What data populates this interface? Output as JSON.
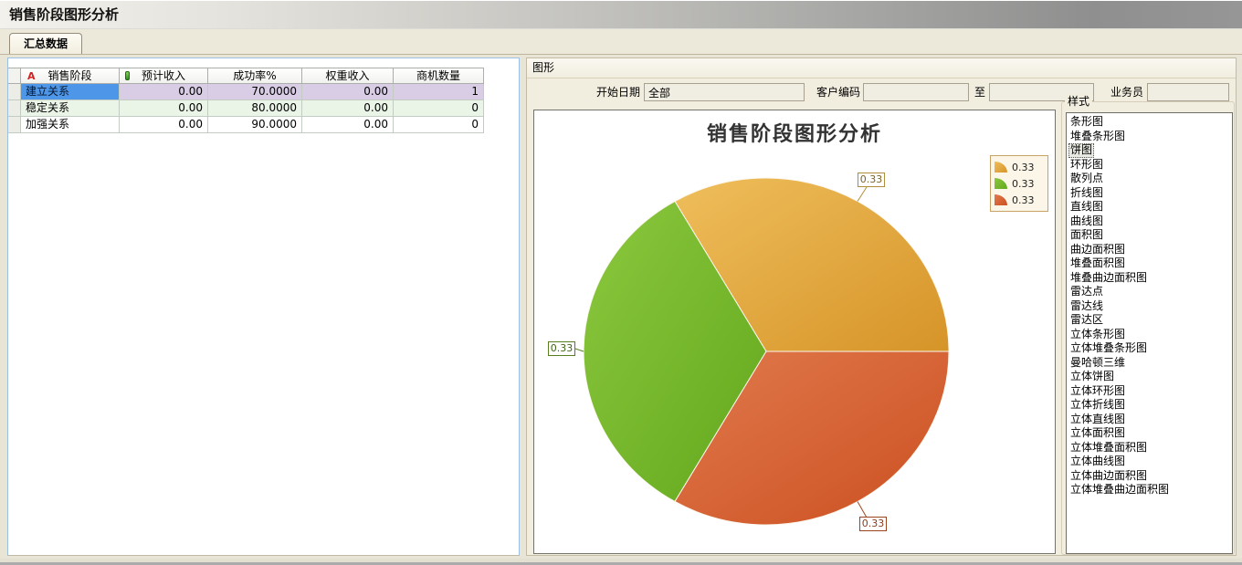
{
  "window": {
    "title": "销售阶段图形分析"
  },
  "tab": {
    "label": "汇总数据"
  },
  "table": {
    "headers": {
      "stage": "销售阶段",
      "stage_sort_icon": "A",
      "expected": "预计收入",
      "rate": "成功率%",
      "weighted": "权重收入",
      "count": "商机数量"
    },
    "rows": [
      {
        "stage": "建立关系",
        "expected": "0.00",
        "rate": "70.0000",
        "weighted": "0.00",
        "count": "1",
        "selected": true
      },
      {
        "stage": "稳定关系",
        "expected": "0.00",
        "rate": "80.0000",
        "weighted": "0.00",
        "count": "0",
        "selected": false
      },
      {
        "stage": "加强关系",
        "expected": "0.00",
        "rate": "90.0000",
        "weighted": "0.00",
        "count": "0",
        "selected": false
      }
    ]
  },
  "graph": {
    "panel_title": "图形",
    "filters": {
      "start_date_label": "开始日期",
      "start_date_value": "全部",
      "customer_code_label": "客户编码",
      "customer_code_value": "",
      "to_label": "至",
      "to_value": "",
      "salesman_label": "业务员",
      "salesman_value": ""
    },
    "style": {
      "title": "样式",
      "selected": "饼图",
      "options": [
        "条形图",
        "堆叠条形图",
        "饼图",
        "环形图",
        "散列点",
        "折线图",
        "直线图",
        "曲线图",
        "面积图",
        "曲边面积图",
        "堆叠面积图",
        "堆叠曲边面积图",
        "雷达点",
        "雷达线",
        "雷达区",
        "立体条形图",
        "立体堆叠条形图",
        "曼哈顿三维",
        "立体饼图",
        "立体环形图",
        "立体折线图",
        "立体直线图",
        "立体面积图",
        "立体堆叠面积图",
        "立体曲线图",
        "立体曲边面积图",
        "立体堆叠曲边面积图"
      ]
    }
  },
  "chart_data": {
    "type": "pie",
    "title": "销售阶段图形分析",
    "values": [
      0.33,
      0.33,
      0.33
    ],
    "slice_labels": [
      "0.33",
      "0.33",
      "0.33"
    ],
    "colors": [
      "#E2A53C",
      "#76BB29",
      "#D5602C"
    ],
    "legend": {
      "position": "top-right",
      "entries": [
        "0.33",
        "0.33",
        "0.33"
      ]
    },
    "start_angle_deg": 0,
    "slice_extent_deg": 120
  }
}
